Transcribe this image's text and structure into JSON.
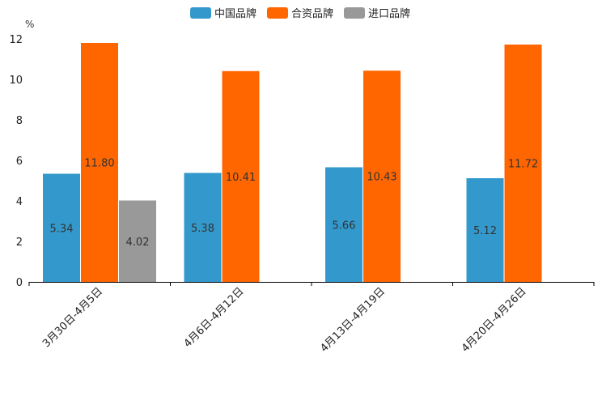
{
  "chart_data": {
    "type": "bar",
    "title": "",
    "xlabel": "",
    "ylabel": "%",
    "ylim": [
      0,
      12
    ],
    "yticks": [
      0,
      2,
      4,
      6,
      8,
      10,
      12
    ],
    "categories": [
      "3月30日-4月5日",
      "4月6日-4月12日",
      "4月13日-4月19日",
      "4月20日-4月26日"
    ],
    "series": [
      {
        "name": "中国品牌",
        "color": "#3399cc",
        "values": [
          5.34,
          5.38,
          5.66,
          5.12
        ],
        "labels": [
          "5.34",
          "5.38",
          "5.66",
          "5.12"
        ]
      },
      {
        "name": "合资品牌",
        "color": "#ff6600",
        "values": [
          11.8,
          10.41,
          10.43,
          11.72
        ],
        "labels": [
          "11.80",
          "10.41",
          "10.43",
          "11.72"
        ]
      },
      {
        "name": "进口品牌",
        "color": "#999999",
        "values": [
          4.02,
          null,
          null,
          null
        ],
        "labels": [
          "4.02",
          null,
          null,
          null
        ]
      }
    ],
    "legend_position": "top-center",
    "grid": false
  }
}
